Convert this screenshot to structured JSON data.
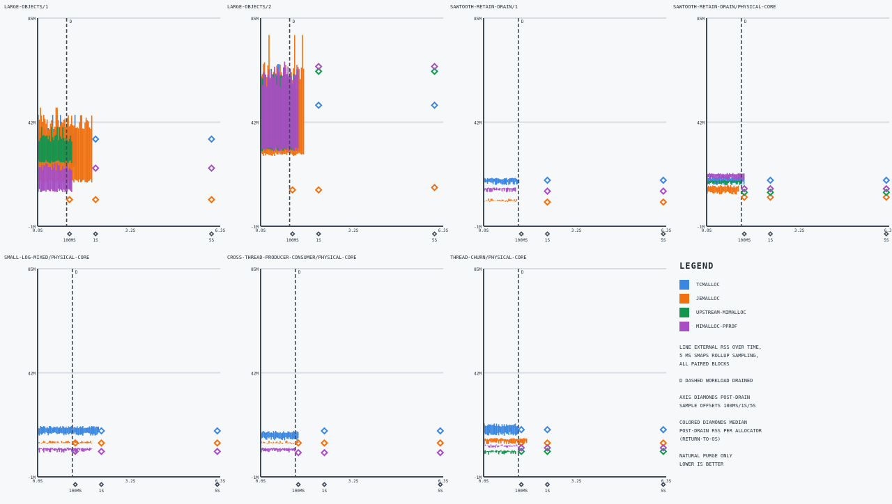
{
  "colors": {
    "tcmalloc": "#3b87e0",
    "jemalloc": "#ef7111",
    "upstream-mimalloc": "#13944f",
    "mimalloc-pprof": "#a64ec2",
    "axis": "#3e4a57",
    "grid": "#d8dde4"
  },
  "legend": {
    "title": "LEGEND",
    "items": [
      {
        "name": "TCMALLOC",
        "color_key": "tcmalloc"
      },
      {
        "name": "JEMALLOC",
        "color_key": "jemalloc"
      },
      {
        "name": "UPSTREAM-MIMALLOC",
        "color_key": "upstream-mimalloc"
      },
      {
        "name": "MIMALLOC-PPROF",
        "color_key": "mimalloc-pprof"
      }
    ],
    "notes": [
      "LINE  EXTERNAL RSS OVER TIME,\n5 MS SMAPS ROLLUP SAMPLING,\nALL PAIRED BLOCKS",
      "D DASHED  WORKLOAD DRAINED",
      "AXIS DIAMONDS  POST-DRAIN\nSAMPLE OFFSETS 100MS/1S/5S",
      "COLORED DIAMONDS  MEDIAN\nPOST-DRAIN RSS PER ALLOCATOR\n(RETURN-TO-OS)",
      "NATURAL PURGE ONLY\nLOWER IS BETTER"
    ]
  },
  "chart_data": [
    {
      "type": "line",
      "title": "LARGE-OBJECTS/1",
      "ylim": [
        -1,
        85
      ],
      "yticks": [
        {
          "v": 85,
          "label": "85M"
        },
        {
          "v": 42,
          "label": "42M"
        },
        {
          "v": -1,
          "label": "-1M"
        }
      ],
      "xlim": [
        0,
        6.3
      ],
      "xticks": [
        {
          "v": 0,
          "label": "0.0S"
        },
        {
          "v": 3.2,
          "label": "3.2S"
        },
        {
          "v": 6.3,
          "label": "6.3S"
        }
      ],
      "drain": {
        "x": 1.0,
        "label": "D"
      },
      "offset_labels": [
        "100MS",
        "1S",
        "5S"
      ],
      "series": [
        {
          "name": "tcmalloc",
          "start": 0.02,
          "end": 1.3,
          "band": [
            23,
            40
          ],
          "peak": 45
        },
        {
          "name": "jemalloc",
          "start": 0.02,
          "end": 1.9,
          "band": [
            17,
            45
          ],
          "peak": 48
        },
        {
          "name": "upstream-mimalloc",
          "start": 0.02,
          "end": 1.2,
          "band": [
            25,
            37
          ],
          "peak": 40
        },
        {
          "name": "mimalloc-pprof",
          "start": 0.02,
          "end": 1.2,
          "band": [
            13,
            25
          ],
          "peak": 25
        }
      ],
      "medians": {
        "tcmalloc": [
          35,
          35
        ],
        "jemalloc": [
          10,
          10,
          10
        ],
        "mimalloc-pprof": [
          23,
          23
        ]
      }
    },
    {
      "type": "line",
      "title": "LARGE-OBJECTS/2",
      "ylim": [
        -1,
        85
      ],
      "yticks": [
        {
          "v": 85,
          "label": "85M"
        },
        {
          "v": 42,
          "label": "42M"
        },
        {
          "v": -1,
          "label": "-1M"
        }
      ],
      "xlim": [
        0,
        6.3
      ],
      "xticks": [
        {
          "v": 0,
          "label": "0.0S"
        },
        {
          "v": 3.2,
          "label": "3.2S"
        },
        {
          "v": 6.3,
          "label": "6.3S"
        }
      ],
      "drain": {
        "x": 1.0,
        "label": "D"
      },
      "offset_labels": [
        "100MS",
        "1S",
        "5S"
      ],
      "series": [
        {
          "name": "tcmalloc",
          "start": 0.02,
          "end": 1.4,
          "band": [
            30,
            62
          ],
          "peak": 66
        },
        {
          "name": "jemalloc",
          "start": 0.02,
          "end": 1.5,
          "band": [
            28,
            68
          ],
          "peak": 78
        },
        {
          "name": "upstream-mimalloc",
          "start": 0.02,
          "end": 1.2,
          "band": [
            30,
            62
          ],
          "peak": 64
        },
        {
          "name": "mimalloc-pprof",
          "start": 0.02,
          "end": 1.3,
          "band": [
            30,
            65
          ],
          "peak": 67
        }
      ],
      "medians": {
        "tcmalloc": [
          49,
          49
        ],
        "jemalloc": [
          14,
          14,
          15
        ],
        "upstream-mimalloc": [
          63,
          63
        ],
        "mimalloc-pprof": [
          65,
          65
        ]
      }
    },
    {
      "type": "line",
      "title": "SAWTOOTH-RETAIN-DRAIN/1",
      "ylim": [
        -1,
        85
      ],
      "yticks": [
        {
          "v": 85,
          "label": "85M"
        },
        {
          "v": 42,
          "label": "42M"
        },
        {
          "v": -1,
          "label": "-1M"
        }
      ],
      "xlim": [
        0,
        6.3
      ],
      "xticks": [
        {
          "v": 0,
          "label": "0.0S"
        },
        {
          "v": 3.2,
          "label": "3.2S"
        },
        {
          "v": 6.3,
          "label": "6.3S"
        }
      ],
      "drain": {
        "x": 1.2,
        "label": "D"
      },
      "offset_labels": [
        "100MS",
        "1S",
        "5S"
      ],
      "series": [
        {
          "name": "tcmalloc",
          "start": 0.02,
          "end": 1.25,
          "band": [
            16,
            19
          ],
          "peak": 19
        },
        {
          "name": "jemalloc",
          "start": 0.02,
          "end": 1.2,
          "band": [
            9,
            9.5
          ],
          "peak": 9.5
        },
        {
          "name": "mimalloc-pprof",
          "start": 0.02,
          "end": 1.1,
          "band": [
            13,
            15
          ],
          "peak": 15
        }
      ],
      "medians": {
        "tcmalloc": [
          18,
          18
        ],
        "jemalloc": [
          9,
          9
        ],
        "mimalloc-pprof": [
          13.5,
          13.5
        ]
      }
    },
    {
      "type": "line",
      "title": "SAWTOOTH-RETAIN-DRAIN/PHYSICAL-CORE",
      "ylim": [
        -1,
        85
      ],
      "yticks": [
        {
          "v": 85,
          "label": "85M"
        },
        {
          "v": 42,
          "label": "42M"
        },
        {
          "v": -1,
          "label": "-1M"
        }
      ],
      "xlim": [
        0,
        6.3
      ],
      "xticks": [
        {
          "v": 0,
          "label": "0.0S"
        },
        {
          "v": 3.2,
          "label": "3.2S"
        },
        {
          "v": 6.3,
          "label": "6.3S"
        }
      ],
      "drain": {
        "x": 1.2,
        "label": "D"
      },
      "offset_labels": [
        "100MS",
        "1S",
        "5S"
      ],
      "series": [
        {
          "name": "tcmalloc",
          "start": 0.02,
          "end": 1.3,
          "band": [
            16,
            19.5
          ],
          "peak": 19.5
        },
        {
          "name": "jemalloc",
          "start": 0.02,
          "end": 1.1,
          "band": [
            12,
            16
          ],
          "peak": 16
        },
        {
          "name": "upstream-mimalloc",
          "start": 0.02,
          "end": 1.2,
          "band": [
            16,
            18
          ],
          "peak": 18
        },
        {
          "name": "mimalloc-pprof",
          "start": 0.02,
          "end": 1.3,
          "band": [
            18,
            21
          ],
          "peak": 21
        }
      ],
      "medians": {
        "tcmalloc": [
          18,
          18
        ],
        "jemalloc": [
          11,
          11,
          11
        ],
        "upstream-mimalloc": [
          13,
          13,
          13
        ],
        "mimalloc-pprof": [
          14.5,
          14.5,
          14.5
        ]
      }
    },
    {
      "type": "line",
      "title": "SMALL-LOG-MIXED/PHYSICAL-CORE",
      "ylim": [
        -1,
        85
      ],
      "yticks": [
        {
          "v": 85,
          "label": "85M"
        },
        {
          "v": 42,
          "label": "42M"
        },
        {
          "v": -1,
          "label": "-1M"
        }
      ],
      "xlim": [
        0,
        6.3
      ],
      "xticks": [
        {
          "v": 0,
          "label": "0.0S"
        },
        {
          "v": 3.2,
          "label": "3.2S"
        },
        {
          "v": 6.3,
          "label": "6.3S"
        }
      ],
      "drain": {
        "x": 1.2,
        "label": "D"
      },
      "offset_labels": [
        "100MS",
        "1S",
        "5S"
      ],
      "series": [
        {
          "name": "tcmalloc",
          "start": 0.02,
          "end": 2.1,
          "band": [
            16,
            20
          ],
          "peak": 20
        },
        {
          "name": "jemalloc",
          "start": 0.02,
          "end": 1.9,
          "band": [
            12.5,
            13
          ],
          "peak": 13
        },
        {
          "name": "mimalloc-pprof",
          "start": 0.02,
          "end": 1.9,
          "band": [
            9,
            11
          ],
          "peak": 11
        }
      ],
      "medians": {
        "tcmalloc": [
          18,
          18
        ],
        "jemalloc": [
          13,
          13,
          13
        ],
        "mimalloc-pprof": [
          9.5,
          9.5,
          9.5
        ]
      }
    },
    {
      "type": "line",
      "title": "CROSS-THREAD-PRODUCER-CONSUMER/PHYSICAL-CORE",
      "ylim": [
        -1,
        85
      ],
      "yticks": [
        {
          "v": 85,
          "label": "85M"
        },
        {
          "v": 42,
          "label": "42M"
        },
        {
          "v": -1,
          "label": "-1M"
        }
      ],
      "xlim": [
        0,
        6.3
      ],
      "xticks": [
        {
          "v": 0,
          "label": "0.0S"
        },
        {
          "v": 3.2,
          "label": "3.2S"
        },
        {
          "v": 6.3,
          "label": "6.3S"
        }
      ],
      "drain": {
        "x": 1.2,
        "label": "D"
      },
      "offset_labels": [
        "100MS",
        "1S",
        "5S"
      ],
      "series": [
        {
          "name": "tcmalloc",
          "start": 0.02,
          "end": 1.3,
          "band": [
            14,
            18
          ],
          "peak": 19
        },
        {
          "name": "jemalloc",
          "start": 0.02,
          "end": 1.3,
          "band": [
            12.5,
            13
          ],
          "peak": 13
        },
        {
          "name": "mimalloc-pprof",
          "start": 0.02,
          "end": 1.2,
          "band": [
            9,
            11
          ],
          "peak": 11
        }
      ],
      "medians": {
        "tcmalloc": [
          18,
          18
        ],
        "jemalloc": [
          13,
          13,
          13
        ],
        "mimalloc-pprof": [
          9,
          9,
          9
        ]
      }
    },
    {
      "type": "line",
      "title": "THREAD-CHURN/PHYSICAL-CORE",
      "ylim": [
        -1,
        85
      ],
      "yticks": [
        {
          "v": 85,
          "label": "85M"
        },
        {
          "v": 42,
          "label": "42M"
        },
        {
          "v": -1,
          "label": "-1M"
        }
      ],
      "xlim": [
        0,
        6.3
      ],
      "xticks": [
        {
          "v": 0,
          "label": "0.0S"
        },
        {
          "v": 3.2,
          "label": "3.2S"
        },
        {
          "v": 6.3,
          "label": "6.3S"
        }
      ],
      "drain": {
        "x": 1.2,
        "label": "D"
      },
      "offset_labels": [
        "100MS",
        "1S",
        "5S"
      ],
      "series": [
        {
          "name": "tcmalloc",
          "start": 0.02,
          "end": 1.2,
          "band": [
            16,
            21
          ],
          "peak": 21
        },
        {
          "name": "jemalloc",
          "start": 0.02,
          "end": 1.5,
          "band": [
            12.5,
            15
          ],
          "peak": 15
        },
        {
          "name": "upstream-mimalloc",
          "start": 0.02,
          "end": 1.1,
          "band": [
            8,
            10
          ],
          "peak": 10
        },
        {
          "name": "mimalloc-pprof",
          "start": 0.02,
          "end": 1.2,
          "band": [
            11,
            12
          ],
          "peak": 12
        }
      ],
      "medians": {
        "tcmalloc": [
          18.5,
          18.5,
          18.5
        ],
        "jemalloc": [
          13,
          13,
          13
        ],
        "upstream-mimalloc": [
          9.5,
          9.5,
          9.5
        ],
        "mimalloc-pprof": [
          11,
          11,
          11
        ]
      }
    }
  ]
}
